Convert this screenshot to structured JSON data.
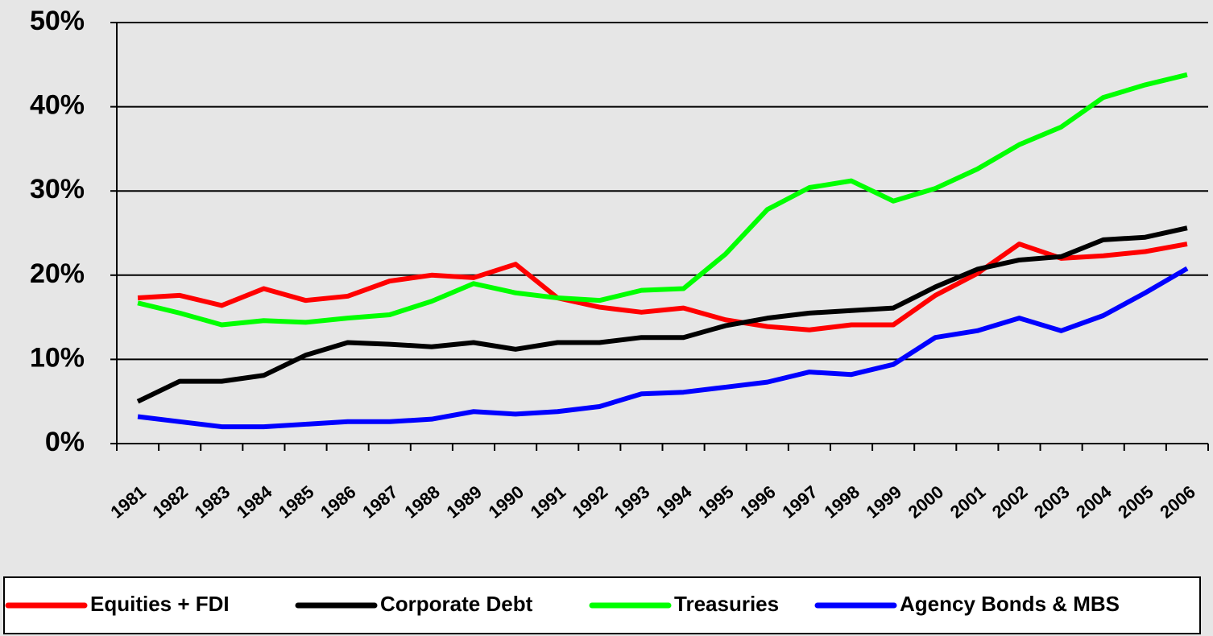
{
  "chart_data": {
    "type": "line",
    "categories": [
      "1981",
      "1982",
      "1983",
      "1984",
      "1985",
      "1986",
      "1987",
      "1988",
      "1989",
      "1990",
      "1991",
      "1992",
      "1993",
      "1994",
      "1995",
      "1996",
      "1997",
      "1998",
      "1999",
      "2000",
      "2001",
      "2002",
      "2003",
      "2004",
      "2005",
      "2006"
    ],
    "series": [
      {
        "name": "Equities + FDI",
        "color": "#ff0000",
        "values": [
          17.3,
          17.6,
          16.4,
          18.4,
          17.0,
          17.5,
          19.3,
          20.0,
          19.7,
          21.3,
          17.3,
          16.2,
          15.6,
          16.1,
          14.7,
          13.9,
          13.5,
          14.1,
          14.1,
          17.6,
          20.2,
          23.7,
          22.0,
          22.3,
          22.8,
          23.7
        ]
      },
      {
        "name": "Corporate Debt",
        "color": "#000000",
        "values": [
          5.0,
          7.4,
          7.4,
          8.1,
          10.5,
          12.0,
          11.8,
          11.5,
          12.0,
          11.2,
          12.0,
          12.0,
          12.6,
          12.6,
          14.0,
          14.9,
          15.5,
          15.8,
          16.1,
          18.6,
          20.7,
          21.8,
          22.2,
          24.2,
          24.5,
          25.6
        ]
      },
      {
        "name": "Treasuries",
        "color": "#00ff00",
        "values": [
          16.7,
          15.5,
          14.1,
          14.6,
          14.4,
          14.9,
          15.3,
          16.9,
          19.0,
          17.9,
          17.3,
          17.0,
          18.2,
          18.4,
          22.5,
          27.8,
          30.4,
          31.2,
          28.8,
          30.3,
          32.6,
          35.5,
          37.6,
          41.1,
          42.6,
          43.8
        ]
      },
      {
        "name": "Agency Bonds & MBS",
        "color": "#0000ff",
        "values": [
          3.2,
          2.6,
          2.0,
          2.0,
          2.3,
          2.6,
          2.6,
          2.9,
          3.8,
          3.5,
          3.8,
          4.4,
          5.9,
          6.1,
          6.7,
          7.3,
          8.5,
          8.2,
          9.4,
          12.6,
          13.4,
          14.9,
          13.4,
          15.2,
          17.9,
          20.8
        ]
      }
    ],
    "ylim": [
      0,
      50
    ],
    "yticks": [
      {
        "value": 0,
        "label": "0%"
      },
      {
        "value": 10,
        "label": "10%"
      },
      {
        "value": 20,
        "label": "20%"
      },
      {
        "value": 30,
        "label": "30%"
      },
      {
        "value": 40,
        "label": "40%"
      },
      {
        "value": 50,
        "label": "50%"
      }
    ],
    "grid": true,
    "legend": "bottom"
  }
}
